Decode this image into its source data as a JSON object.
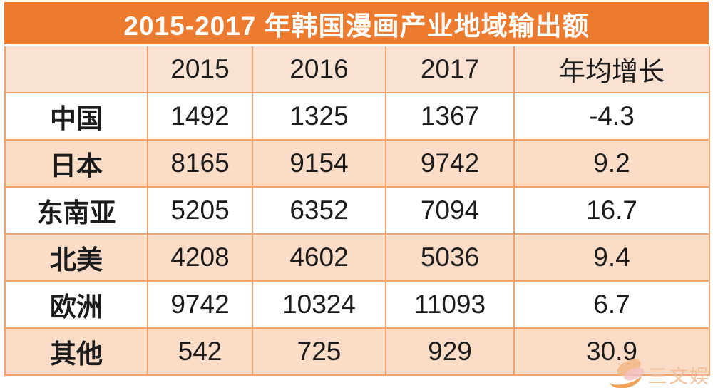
{
  "title": "2015-2017 年韩国漫画产业地域输出额",
  "table": {
    "columns": [
      "",
      "2015",
      "2016",
      "2017",
      "年均增长"
    ],
    "rows": [
      {
        "label": "中国",
        "values": [
          "1492",
          "1325",
          "1367",
          "-4.3"
        ]
      },
      {
        "label": "日本",
        "values": [
          "8165",
          "9154",
          "9742",
          "9.2"
        ]
      },
      {
        "label": "东南亚",
        "values": [
          "5205",
          "6352",
          "7094",
          "16.7"
        ]
      },
      {
        "label": "北美",
        "values": [
          "4208",
          "4602",
          "5036",
          "9.4"
        ]
      },
      {
        "label": "欧洲",
        "values": [
          "9742",
          "10324",
          "11093",
          "6.7"
        ]
      },
      {
        "label": "其他",
        "values": [
          "542",
          "725",
          "929",
          "30.9"
        ]
      }
    ]
  },
  "watermark": {
    "text": "三文娱",
    "logo_icon": "leaf-logo-icon"
  },
  "colors": {
    "banner": "#EC7B2F",
    "header_row_bg": "#FAE2D2",
    "stripe_row_bg": "#FADCC7",
    "plain_row_bg": "#FFFFFF",
    "grid_line": "#F1A26E",
    "title_text": "#FFFFFF",
    "body_text": "#1C1C1C",
    "watermark_text": "#F4BD96"
  },
  "chart_data": {
    "type": "table",
    "title": "2015-2017 年韩国漫画产业地域输出额",
    "columns": [
      "",
      "2015",
      "2016",
      "2017",
      "年均增长"
    ],
    "rows": [
      [
        "中国",
        1492,
        1325,
        1367,
        -4.3
      ],
      [
        "日本",
        8165,
        9154,
        9742,
        9.2
      ],
      [
        "东南亚",
        5205,
        6352,
        7094,
        16.7
      ],
      [
        "北美",
        4208,
        4602,
        5036,
        9.4
      ],
      [
        "欧洲",
        9742,
        10324,
        11093,
        6.7
      ],
      [
        "其他",
        542,
        725,
        929,
        30.9
      ]
    ],
    "layout_hints": {
      "striped_rows": true,
      "banner_style_title": true,
      "first_header_cell_empty": true
    }
  }
}
